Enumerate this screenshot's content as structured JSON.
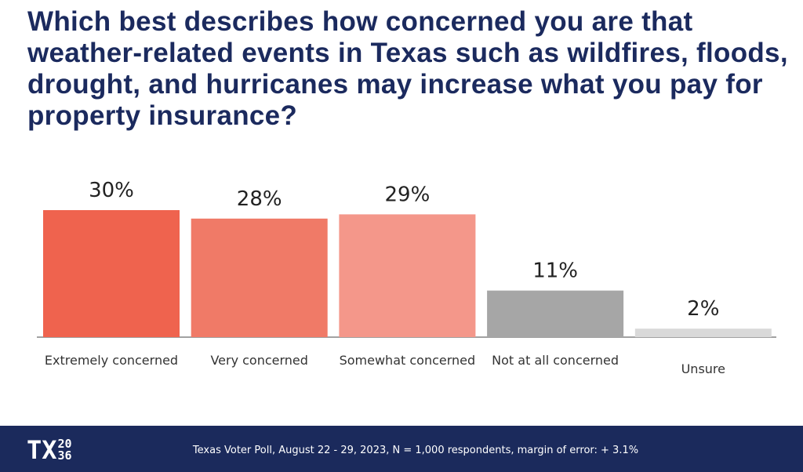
{
  "chart_data": {
    "type": "bar",
    "title": "Which best describes how concerned you are that weather-related events in Texas such as wildfires, floods, drought, and hurricanes may increase what you pay for property insurance?",
    "categories": [
      "Extremely concerned",
      "Very concerned",
      "Somewhat concerned",
      "Not at all concerned",
      "Unsure"
    ],
    "values": [
      30,
      28,
      29,
      11,
      2
    ],
    "value_labels": [
      "30%",
      "28%",
      "29%",
      "11%",
      "2%"
    ],
    "colors": [
      "#ef634e",
      "#f07a67",
      "#f4978a",
      "#a6a6a6",
      "#d9d9d9"
    ]
  },
  "footer": {
    "logo": "TX",
    "logo_year": [
      "20",
      "36"
    ],
    "note": "Texas Voter Poll, August 22 - 29, 2023, N = 1,000 respondents, margin of error: + 3.1%"
  }
}
